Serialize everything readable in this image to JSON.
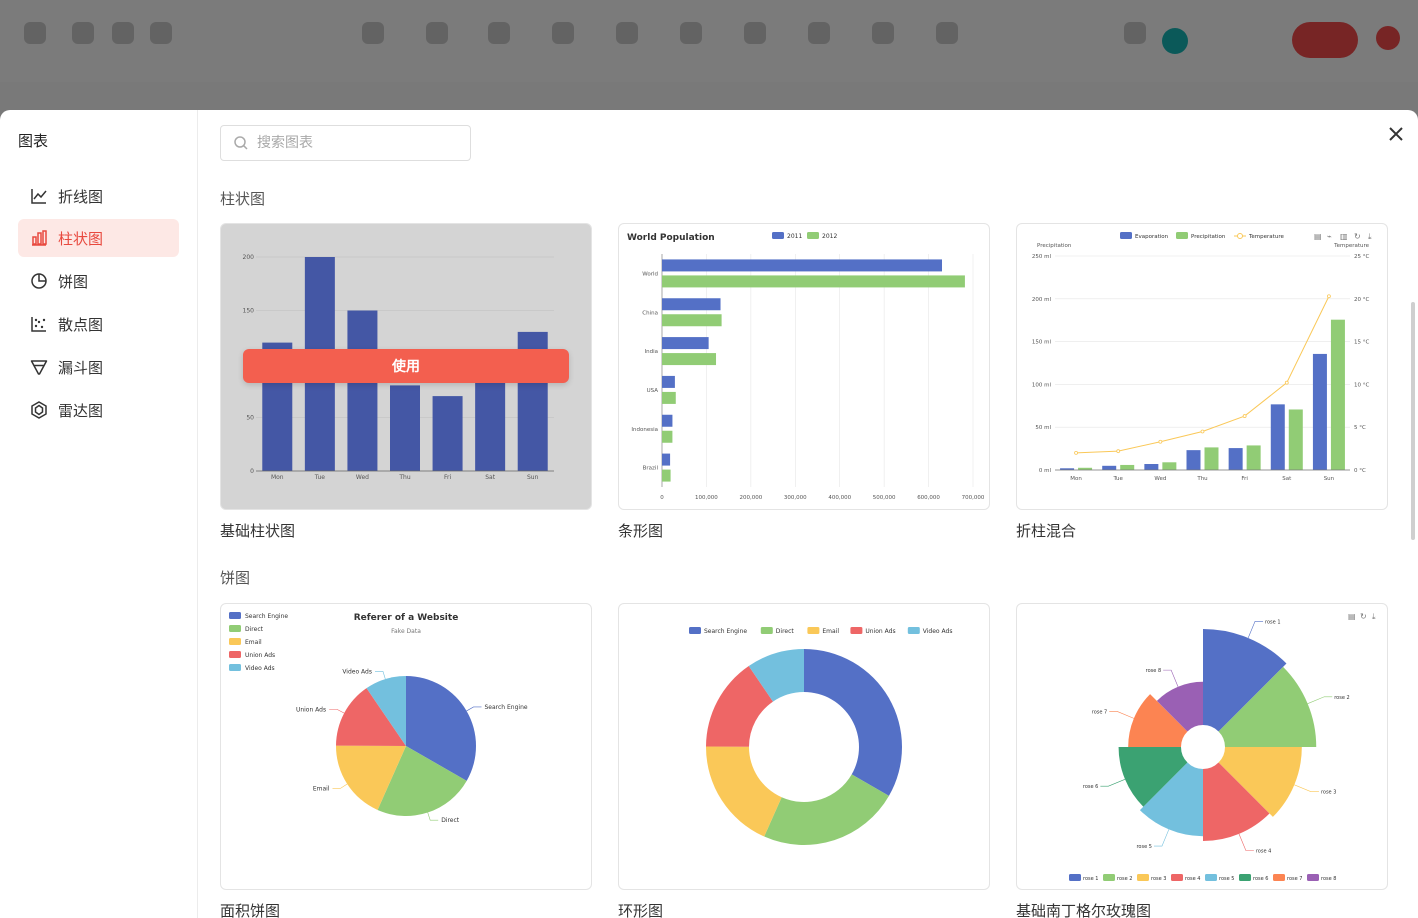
{
  "modal": {
    "title": "图表",
    "search_placeholder": "搜索图表"
  },
  "nav": [
    {
      "label": "折线图",
      "icon": "line-chart-icon",
      "active": false
    },
    {
      "label": "柱状图",
      "icon": "bar-chart-icon",
      "active": true
    },
    {
      "label": "饼图",
      "icon": "pie-chart-icon",
      "active": false
    },
    {
      "label": "散点图",
      "icon": "scatter-chart-icon",
      "active": false
    },
    {
      "label": "漏斗图",
      "icon": "funnel-chart-icon",
      "active": false
    },
    {
      "label": "雷达图",
      "icon": "radar-chart-icon",
      "active": false
    }
  ],
  "sections": [
    {
      "title": "柱状图",
      "cards": [
        "基础柱状图",
        "条形图",
        "折柱混合"
      ]
    },
    {
      "title": "饼图",
      "cards": [
        "面积饼图",
        "环形图",
        "基础南丁格尔玫瑰图"
      ]
    }
  ],
  "use_label": "使用",
  "colors": {
    "accent": "#f35f4f",
    "active_bg": "#fde8e5",
    "blue": "#5470c6",
    "green": "#91cc75",
    "yellow": "#fac858",
    "red": "#ee6666",
    "lightblue": "#73c0de",
    "teal": "#3ba272",
    "orange": "#fc8452",
    "purple": "#9a60b4"
  },
  "chart_data": [
    {
      "type": "bar",
      "categories": [
        "Mon",
        "Tue",
        "Wed",
        "Thu",
        "Fri",
        "Sat",
        "Sun"
      ],
      "values": [
        120,
        200,
        150,
        80,
        70,
        110,
        130
      ],
      "yticks": [
        "0",
        "50",
        "100",
        "150",
        "200"
      ],
      "ylim": [
        0,
        200
      ]
    },
    {
      "type": "bar",
      "orientation": "horizontal",
      "title": "World Population",
      "categories": [
        "Brazil",
        "Indonesia",
        "USA",
        "India",
        "China",
        "World"
      ],
      "series": [
        {
          "name": "2011",
          "values": [
            18203,
            23489,
            29034,
            104970,
            131744,
            630230
          ]
        },
        {
          "name": "2012",
          "values": [
            19325,
            23438,
            31000,
            121594,
            134141,
            681807
          ]
        }
      ],
      "xticks": [
        "0",
        "100,000",
        "200,000",
        "300,000",
        "400,000",
        "500,000",
        "600,000",
        "700,000"
      ],
      "xlim": [
        0,
        700000
      ]
    },
    {
      "type": "bar",
      "categories": [
        "Mon",
        "Tue",
        "Wed",
        "Thu",
        "Fri",
        "Sat",
        "Sun"
      ],
      "series": [
        {
          "name": "Evaporation",
          "values": [
            2.0,
            4.9,
            7.0,
            23.2,
            25.6,
            76.7,
            135.6
          ]
        },
        {
          "name": "Precipitation",
          "values": [
            2.6,
            5.9,
            9.0,
            26.4,
            28.7,
            70.7,
            175.6
          ]
        },
        {
          "name": "Temperature",
          "type": "line",
          "values": [
            2.0,
            2.2,
            3.3,
            4.5,
            6.3,
            10.2,
            20.3
          ]
        }
      ],
      "y_left_label": "Precipitation",
      "y_right_label": "Temperature",
      "yticks_left": [
        "0 ml",
        "50 ml",
        "100 ml",
        "150 ml",
        "200 ml",
        "250 ml"
      ],
      "yticks_right": [
        "0 °C",
        "5 °C",
        "10 °C",
        "15 °C",
        "20 °C",
        "25 °C"
      ],
      "ylim": [
        0,
        250
      ],
      "ylim_right": [
        0,
        25
      ]
    },
    {
      "type": "pie",
      "title": "Referer of a Website",
      "subtitle": "Fake Data",
      "labels": [
        "Search Engine",
        "Direct",
        "Email",
        "Union Ads",
        "Video Ads"
      ],
      "values": [
        1048,
        735,
        580,
        484,
        300
      ]
    },
    {
      "type": "pie",
      "donut": true,
      "labels": [
        "Search Engine",
        "Direct",
        "Email",
        "Union Ads",
        "Video Ads"
      ],
      "values": [
        1048,
        735,
        580,
        484,
        300
      ]
    },
    {
      "type": "pie",
      "rose": true,
      "labels": [
        "rose 1",
        "rose 2",
        "rose 3",
        "rose 4",
        "rose 5",
        "rose 6",
        "rose 7",
        "rose 8"
      ],
      "values": [
        40,
        38,
        32,
        30,
        28,
        26,
        22,
        18
      ]
    }
  ]
}
